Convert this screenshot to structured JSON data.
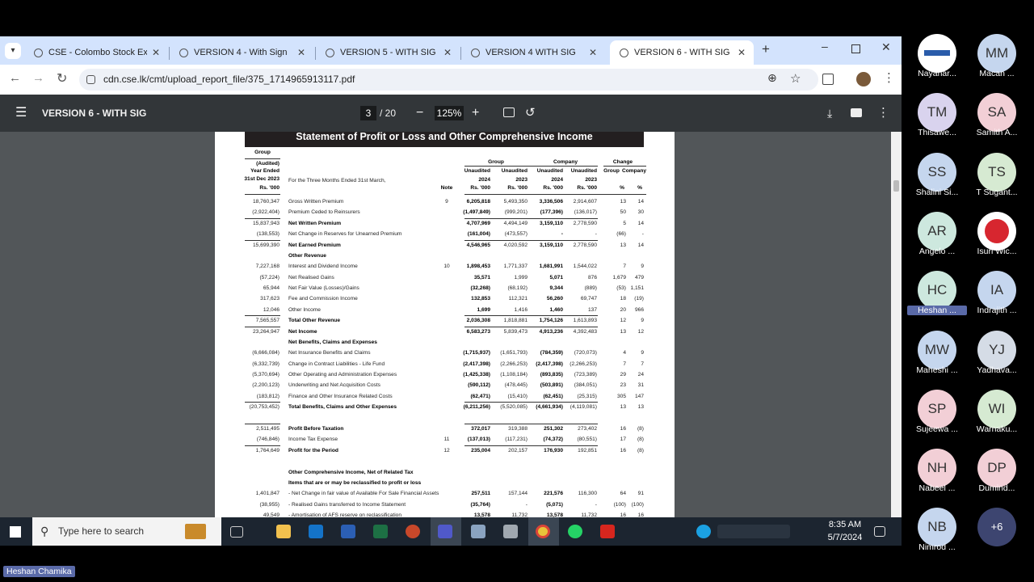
{
  "browser": {
    "tabs": [
      "CSE - Colombo Stock Exchan",
      "VERSION 4 - With Sign",
      "VERSION 5 - WITH SIG",
      "VERSION 4 WITH SIG",
      "VERSION 6 - WITH SIG"
    ],
    "url": "cdn.cse.lk/cmt/upload_report_file/375_1714965913117.pdf"
  },
  "pdf_toolbar": {
    "title": "VERSION 6 - WITH SIG",
    "page": "3",
    "page_count": "/ 20",
    "zoom": "125%"
  },
  "document": {
    "title": "Statement of Profit or Loss and Other Comprehensive Income",
    "group_header": [
      "Group",
      "(Audited)",
      "Year Ended",
      "31st Dec 2023",
      "Rs. '000"
    ],
    "period_label": "For the Three Months Ended 31st March,",
    "note_header": "Note",
    "column_groups": [
      "Group",
      "Company",
      "Change"
    ],
    "status_headers": [
      "Unaudited",
      "Unaudited",
      "Unaudited",
      "Unaudited"
    ],
    "change_headers": [
      "Group",
      "Company"
    ],
    "years": [
      "2024",
      "2023",
      "2024",
      "2023"
    ],
    "unit_headers": [
      "Rs. '000",
      "Rs. '000",
      "Rs. '000",
      "Rs. '000"
    ],
    "percent_headers": [
      "%",
      "%"
    ],
    "rows": [
      {
        "prior": "18,760,347",
        "label": "Gross Written Premium",
        "note": "9",
        "values": [
          "6,205,818",
          "5,493,350",
          "3,336,506",
          "2,914,607"
        ],
        "change": [
          "13",
          "14"
        ]
      },
      {
        "prior": "(2,922,404)",
        "label": "Premium Ceded to Reinsurers",
        "values": [
          "(1,497,849)",
          "(999,201)",
          "(177,396)",
          "(136,017)"
        ],
        "change": [
          "50",
          "30"
        ]
      },
      {
        "prior": "15,837,943",
        "label": "Net Written Premium",
        "bold": true,
        "values": [
          "4,707,969",
          "4,494,149",
          "3,159,110",
          "2,778,590"
        ],
        "change": [
          "5",
          "14"
        ]
      },
      {
        "prior": "(138,553)",
        "label": "Net Change in Reserves for Unearned Premium",
        "values": [
          "(161,004)",
          "(473,557)",
          "-",
          "-"
        ],
        "change": [
          "(66)",
          "-"
        ]
      },
      {
        "prior": "15,699,390",
        "label": "Net Earned Premium",
        "bold": true,
        "values": [
          "4,546,965",
          "4,020,592",
          "3,159,110",
          "2,778,590"
        ],
        "change": [
          "13",
          "14"
        ]
      },
      {
        "heading": "Other Revenue"
      },
      {
        "prior": "7,227,168",
        "label": "Interest and Dividend Income",
        "note": "10",
        "values": [
          "1,898,453",
          "1,771,337",
          "1,681,991",
          "1,544,022"
        ],
        "change": [
          "7",
          "9"
        ]
      },
      {
        "prior": "(57,224)",
        "label": "Net Realised Gains",
        "values": [
          "35,571",
          "1,999",
          "5,071",
          "876"
        ],
        "change": [
          "1,679",
          "479"
        ]
      },
      {
        "prior": "65,944",
        "label": "Net Fair Value (Losses)/Gains",
        "values": [
          "(32,268)",
          "(68,192)",
          "9,344",
          "(889)"
        ],
        "change": [
          "(53)",
          "1,151"
        ]
      },
      {
        "prior": "317,623",
        "label": "Fee and Commission Income",
        "values": [
          "132,853",
          "112,321",
          "56,260",
          "69,747"
        ],
        "change": [
          "18",
          "(19)"
        ]
      },
      {
        "prior": "12,046",
        "label": "Other Income",
        "values": [
          "1,699",
          "1,416",
          "1,460",
          "137"
        ],
        "change": [
          "20",
          "966"
        ]
      },
      {
        "prior": "7,565,557",
        "label": "Total Other Revenue",
        "bold": true,
        "values": [
          "2,036,308",
          "1,818,881",
          "1,754,126",
          "1,613,893"
        ],
        "change": [
          "12",
          "9"
        ]
      },
      {
        "prior": "23,264,947",
        "label": "Net Income",
        "bold": true,
        "values": [
          "6,583,273",
          "5,839,473",
          "4,913,236",
          "4,392,483"
        ],
        "change": [
          "13",
          "12"
        ]
      },
      {
        "heading": "Net Benefits, Claims and Expenses"
      },
      {
        "prior": "(6,666,084)",
        "label": "Net Insurance Benefits and Claims",
        "values": [
          "(1,715,937)",
          "(1,651,793)",
          "(784,359)",
          "(720,073)"
        ],
        "change": [
          "4",
          "9"
        ]
      },
      {
        "prior": "(6,332,739)",
        "label": "Change in Contract Liabilities - Life Fund",
        "values": [
          "(2,417,398)",
          "(2,266,253)",
          "(2,417,398)",
          "(2,266,253)"
        ],
        "change": [
          "7",
          "7"
        ]
      },
      {
        "prior": "(5,370,694)",
        "label": "Other Operating and Administration Expenses",
        "values": [
          "(1,425,338)",
          "(1,108,184)",
          "(893,835)",
          "(723,389)"
        ],
        "change": [
          "29",
          "24"
        ]
      },
      {
        "prior": "(2,200,123)",
        "label": "Underwriting and Net Acquisition Costs",
        "values": [
          "(590,112)",
          "(478,445)",
          "(503,891)",
          "(384,051)"
        ],
        "change": [
          "23",
          "31"
        ]
      },
      {
        "prior": "(183,812)",
        "label": "Finance and Other Insurance Related Costs",
        "values": [
          "(62,471)",
          "(15,410)",
          "(62,451)",
          "(25,315)"
        ],
        "change": [
          "305",
          "147"
        ]
      },
      {
        "prior": "(20,753,452)",
        "label": "Total Benefits, Claims and Other Expenses",
        "bold": true,
        "values": [
          "(6,211,256)",
          "(5,520,085)",
          "(4,661,934)",
          "(4,119,081)"
        ],
        "change": [
          "13",
          "13"
        ]
      },
      {
        "prior": "2,511,495",
        "label": "Profit Before Taxation",
        "bold": true,
        "values": [
          "372,017",
          "319,388",
          "251,302",
          "273,402"
        ],
        "change": [
          "16",
          "(8)"
        ]
      },
      {
        "prior": "(746,846)",
        "label": "Income Tax Expense",
        "note": "11",
        "values": [
          "(137,013)",
          "(117,231)",
          "(74,372)",
          "(80,551)"
        ],
        "change": [
          "17",
          "(8)"
        ]
      },
      {
        "prior": "1,764,649",
        "label": "Profit for the Period",
        "note": "12",
        "bold": true,
        "values": [
          "235,004",
          "202,157",
          "176,930",
          "192,851"
        ],
        "change": [
          "16",
          "(8)"
        ]
      },
      {
        "heading": "Other Comprehensive Income, Net of Related Tax"
      },
      {
        "heading": "Items that are or may be reclassified to profit or loss"
      },
      {
        "prior": "1,401,847",
        "label": "- Net Change in fair value of Available For Sale Financial Assets",
        "values": [
          "257,511",
          "157,144",
          "221,576",
          "116,300"
        ],
        "change": [
          "64",
          "91"
        ]
      },
      {
        "prior": "(38,955)",
        "label": "- Realised Gains transferred to Income Statement",
        "values": [
          "(35,764)",
          "-",
          "(5,071)",
          "-"
        ],
        "change": [
          "(100)",
          "(100)"
        ]
      },
      {
        "prior": "49,549",
        "label": "- Amortisation of AFS reserve on reclassification",
        "values": [
          "13,578",
          "11,732",
          "13,578",
          "11,732"
        ],
        "change": [
          "16",
          "16"
        ]
      }
    ]
  },
  "taskbar": {
    "search": "Type here to search",
    "time": "8:35 AM",
    "date": "5/7/2024"
  },
  "participants": [
    {
      "name": "Nayahar...",
      "color": "#ffffff"
    },
    {
      "initials": "MM",
      "name": "Macan ...",
      "color": "#c5d6ee"
    },
    {
      "initials": "TM",
      "name": "Thisawe...",
      "color": "#d9d3ee"
    },
    {
      "initials": "SA",
      "name": "Samith A...",
      "color": "#f2cfd6"
    },
    {
      "initials": "SS",
      "name": "Shalini Si...",
      "color": "#c5d6ee"
    },
    {
      "initials": "TS",
      "name": "T Sugant...",
      "color": "#d6ead2"
    },
    {
      "initials": "AR",
      "name": "Angelo ...",
      "color": "#cde8de"
    },
    {
      "name": "Isuri Wic...",
      "color": "#ffffff"
    },
    {
      "initials": "HC",
      "name": "Heshan ...",
      "color": "#cde8de",
      "highlight": true
    },
    {
      "initials": "IA",
      "name": "Indrajith ...",
      "color": "#c5d6ee"
    },
    {
      "initials": "MW",
      "name": "Maheshi ...",
      "color": "#c5d6ee"
    },
    {
      "initials": "YJ",
      "name": "Yadhava...",
      "color": "#d5dce6"
    },
    {
      "initials": "SP",
      "name": "Sujeewa ...",
      "color": "#f2cfd6"
    },
    {
      "initials": "WI",
      "name": "Warnaku...",
      "color": "#d6ead2"
    },
    {
      "initials": "NH",
      "name": "Nabeel ...",
      "color": "#f2cfd6"
    },
    {
      "initials": "DP",
      "name": "Dumind...",
      "color": "#f2cfd6"
    },
    {
      "initials": "NB",
      "name": "Nimrod ...",
      "color": "#c5d6ee"
    }
  ],
  "more": "+6",
  "presenter": "Heshan Chamika"
}
